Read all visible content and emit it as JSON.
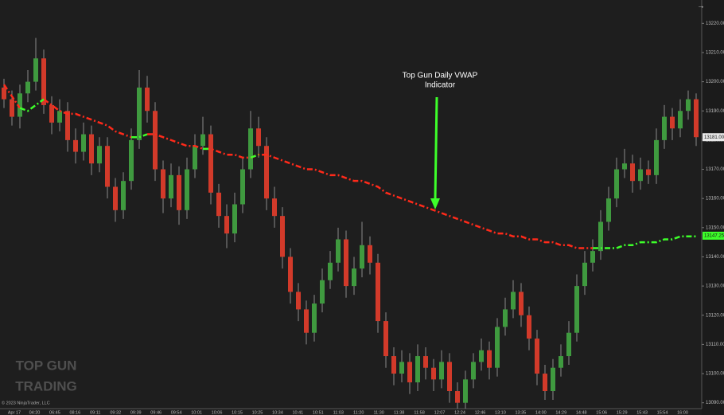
{
  "chart_data": {
    "type": "candlestick",
    "open": [
      13198,
      13194,
      13188,
      13196,
      13200,
      13208,
      13192,
      13186,
      13190,
      13180,
      13176,
      13182,
      13172,
      13178,
      13164,
      13156,
      13166,
      13180,
      13198,
      13190,
      13170,
      13160,
      13168,
      13156,
      13170,
      13178,
      13182,
      13162,
      13154,
      13148,
      13158,
      13170,
      13184,
      13178,
      13160,
      13154,
      13140,
      13128,
      13122,
      13114,
      13124,
      13132,
      13138,
      13146,
      13130,
      13136,
      13144,
      13138,
      13118,
      13106,
      13100,
      13104,
      13097,
      13106,
      13102,
      13098,
      13104,
      13094,
      13090,
      13098,
      13104,
      13108,
      13102,
      13116,
      13122,
      13128,
      13120,
      13112,
      13100,
      13094,
      13102,
      13106,
      13114,
      13130,
      13138,
      13142,
      13152,
      13160,
      13170,
      13172,
      13166,
      13170,
      13168,
      13180,
      13188,
      13184,
      13190,
      13194
    ],
    "high": [
      13201,
      13197,
      13199,
      13204,
      13215,
      13211,
      13195,
      13194,
      13193,
      13184,
      13186,
      13185,
      13181,
      13181,
      13167,
      13169,
      13184,
      13204,
      13202,
      13193,
      13173,
      13172,
      13171,
      13174,
      13182,
      13188,
      13185,
      13165,
      13158,
      13162,
      13174,
      13190,
      13188,
      13181,
      13164,
      13157,
      13143,
      13131,
      13125,
      13127,
      13136,
      13142,
      13150,
      13149,
      13140,
      13152,
      13147,
      13141,
      13121,
      13109,
      13108,
      13107,
      13110,
      13109,
      13105,
      13108,
      13107,
      13097,
      13101,
      13107,
      13112,
      13111,
      13119,
      13126,
      13132,
      13131,
      13123,
      13115,
      13103,
      13105,
      13110,
      13118,
      13134,
      13142,
      13146,
      13156,
      13164,
      13174,
      13177,
      13175,
      13174,
      13173,
      13184,
      13192,
      13191,
      13194,
      13197,
      13196
    ],
    "low": [
      13191,
      13185,
      13184,
      13193,
      13197,
      13189,
      13182,
      13183,
      13176,
      13172,
      13173,
      13168,
      13169,
      13160,
      13152,
      13153,
      13163,
      13177,
      13186,
      13166,
      13155,
      13157,
      13151,
      13153,
      13167,
      13175,
      13158,
      13150,
      13143,
      13145,
      13155,
      13167,
      13174,
      13156,
      13150,
      13136,
      13124,
      13118,
      13110,
      13111,
      13121,
      13129,
      13135,
      13126,
      13127,
      13133,
      13134,
      13114,
      13102,
      13096,
      13097,
      13093,
      13094,
      13098,
      13094,
      13095,
      13090,
      13088,
      13088,
      13095,
      13101,
      13098,
      13099,
      13113,
      13119,
      13116,
      13108,
      13096,
      13091,
      13091,
      13099,
      13103,
      13111,
      13127,
      13135,
      13139,
      13149,
      13157,
      13167,
      13162,
      13163,
      13165,
      13165,
      13177,
      13180,
      13181,
      13187,
      13178
    ],
    "close": [
      13194,
      13188,
      13196,
      13200,
      13208,
      13192,
      13186,
      13190,
      13180,
      13176,
      13182,
      13172,
      13178,
      13164,
      13156,
      13166,
      13180,
      13198,
      13190,
      13170,
      13160,
      13168,
      13156,
      13170,
      13178,
      13182,
      13162,
      13154,
      13148,
      13158,
      13170,
      13184,
      13178,
      13160,
      13154,
      13140,
      13128,
      13122,
      13114,
      13124,
      13132,
      13138,
      13146,
      13130,
      13136,
      13144,
      13138,
      13118,
      13106,
      13100,
      13104,
      13097,
      13106,
      13102,
      13098,
      13104,
      13094,
      13090,
      13098,
      13104,
      13108,
      13102,
      13116,
      13122,
      13128,
      13120,
      13112,
      13100,
      13094,
      13102,
      13106,
      13114,
      13130,
      13138,
      13142,
      13152,
      13160,
      13170,
      13172,
      13166,
      13170,
      13168,
      13180,
      13188,
      13184,
      13190,
      13194,
      13181
    ],
    "up_color": "#3f9a3f",
    "down_color": "#d23a2a",
    "wick_color": "#8a8a8a",
    "overlays": [
      {
        "color": "#ff2a1a",
        "values": [
          13199,
          13195,
          13191,
          null,
          null,
          13194,
          13192,
          13190,
          13189,
          13189,
          13188,
          13187,
          13186,
          13185,
          13183,
          13182,
          13181,
          null,
          13182,
          13182,
          13181,
          13180,
          13179,
          13178,
          13178,
          13177,
          13177,
          13176,
          13175,
          13175,
          13174,
          13174,
          13175,
          13175,
          13174,
          13173,
          13172,
          13171,
          13170,
          13170,
          13169,
          13168,
          13168,
          13167,
          13166,
          13166,
          13165,
          13164,
          13162,
          13161,
          13160,
          13159,
          13158,
          13157,
          13156,
          13155,
          13154,
          13153,
          13152,
          13151,
          13150,
          13149,
          13148,
          13148,
          13147,
          13147,
          13146,
          13146,
          13145,
          13145,
          13144,
          13144,
          13143,
          13143,
          13143,
          null,
          null,
          null,
          null,
          null,
          null,
          null,
          null,
          null,
          null,
          null,
          null,
          null
        ]
      },
      {
        "color": "#3dff2a",
        "values": [
          null,
          null,
          13191,
          13190,
          13192,
          13194,
          null,
          null,
          null,
          null,
          null,
          null,
          null,
          null,
          null,
          null,
          13181,
          13181,
          13182,
          null,
          null,
          null,
          null,
          null,
          null,
          13177,
          13177,
          null,
          null,
          null,
          null,
          13174,
          13175,
          null,
          null,
          null,
          null,
          null,
          null,
          null,
          null,
          null,
          null,
          null,
          null,
          null,
          null,
          null,
          null,
          null,
          null,
          null,
          null,
          null,
          null,
          null,
          null,
          null,
          null,
          null,
          null,
          null,
          null,
          null,
          null,
          null,
          null,
          null,
          null,
          null,
          null,
          null,
          null,
          null,
          13143,
          13143,
          13143,
          13143,
          13144,
          13144,
          13145,
          13145,
          13145,
          13146,
          13146,
          13147,
          13147,
          13147
        ]
      }
    ],
    "ylim": [
      13088,
      13228
    ],
    "yticks": [
      {
        "value": 13220,
        "label": "13220.00"
      },
      {
        "value": 13210,
        "label": "13210.00"
      },
      {
        "value": 13200,
        "label": "13200.00"
      },
      {
        "value": 13190,
        "label": "13190.00"
      },
      {
        "value": 13180,
        "label": "13180.00"
      },
      {
        "value": 13170,
        "label": "13170.00"
      },
      {
        "value": 13160,
        "label": "13160.00"
      },
      {
        "value": 13150,
        "label": "13150.00"
      },
      {
        "value": 13140,
        "label": "13140.00"
      },
      {
        "value": 13130,
        "label": "13130.00"
      },
      {
        "value": 13120,
        "label": "13120.00"
      },
      {
        "value": 13110,
        "label": "13110.00"
      },
      {
        "value": 13100,
        "label": "13100.00"
      },
      {
        "value": 13090,
        "label": "13090.00"
      }
    ],
    "price_tags": [
      {
        "value": 13181,
        "label": "13181.00",
        "color": "#e8e8e8"
      },
      {
        "value": 13147.25,
        "label": "13147.25",
        "color": "#3dff2a"
      }
    ],
    "x_labels": [
      "Apr 17",
      "04:20",
      "06:45",
      "08:16",
      "09:11",
      "09:32",
      "09:39",
      "09:46",
      "09:54",
      "10:01",
      "10:06",
      "10:15",
      "10:25",
      "10:34",
      "10:41",
      "10:51",
      "11:03",
      "11:20",
      "11:30",
      "11:38",
      "11:58",
      "12:07",
      "12:24",
      "12:46",
      "13:10",
      "13:35",
      "14:00",
      "14:29",
      "14:48",
      "15:06",
      "15:29",
      "15:43",
      "15:54",
      "16:00"
    ],
    "annotation": [
      "Top Gun Daily VWAP",
      "Indicator"
    ],
    "copyright": "© 2023 NinjaTrader, LLC",
    "logo": [
      "TOP GUN",
      "TRADING"
    ]
  }
}
